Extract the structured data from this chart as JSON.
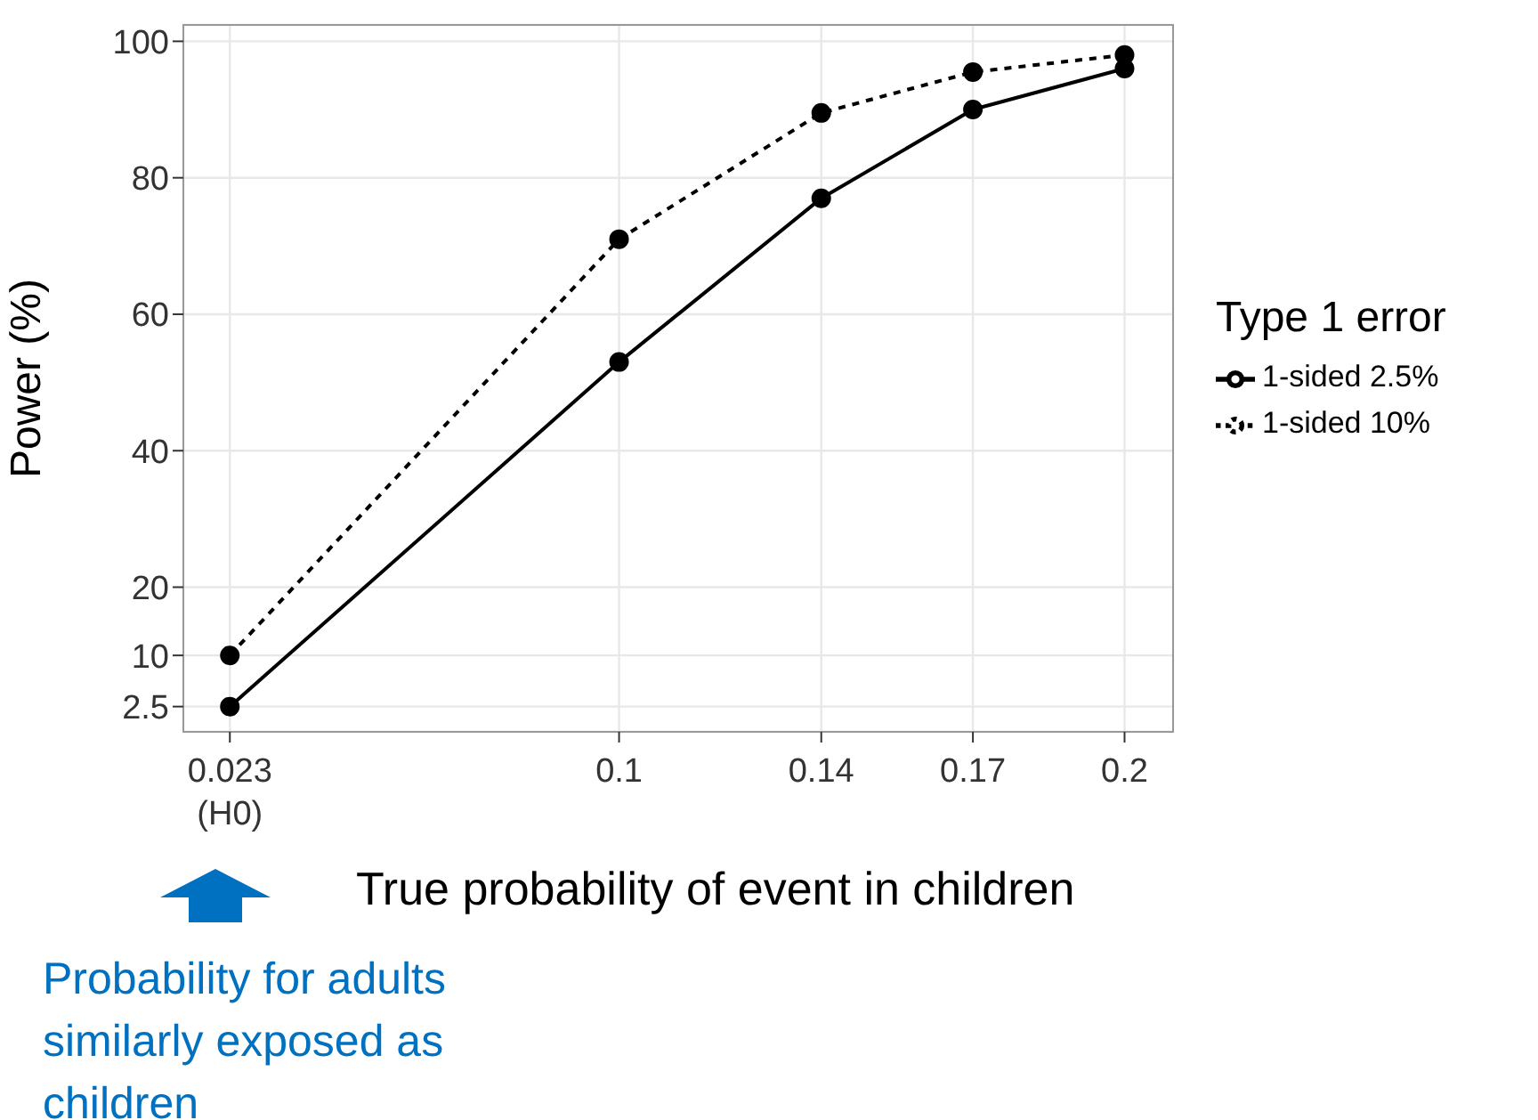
{
  "chart_data": {
    "type": "line",
    "xlabel": "True probability of event in children",
    "ylabel": "Power (%)",
    "legend_title": "Type 1 error",
    "x": [
      0.023,
      0.1,
      0.14,
      0.17,
      0.2
    ],
    "series": [
      {
        "name": "1-sided 2.5%",
        "color": "#000000",
        "line_style": "solid",
        "values": [
          2.5,
          53,
          77,
          90,
          96
        ]
      },
      {
        "name": "1-sided 10%",
        "color": "#000000",
        "line_style": "dashed",
        "values": [
          10,
          71,
          89.5,
          95.5,
          98
        ]
      }
    ],
    "xlim": [
      0.0138,
      0.2096
    ],
    "xticks": [
      {
        "value": 0.023,
        "label": "0.023\n(H0)"
      },
      0.1,
      0.14,
      0.17,
      0.2
    ],
    "ylim": [
      -1.2,
      102.4
    ],
    "yticks": [
      2.5,
      10,
      20,
      40,
      60,
      80,
      100
    ],
    "grid": true,
    "legend": "right",
    "marker": "circle",
    "annotations": [
      "Probability for adults similarly exposed as children"
    ]
  }
}
